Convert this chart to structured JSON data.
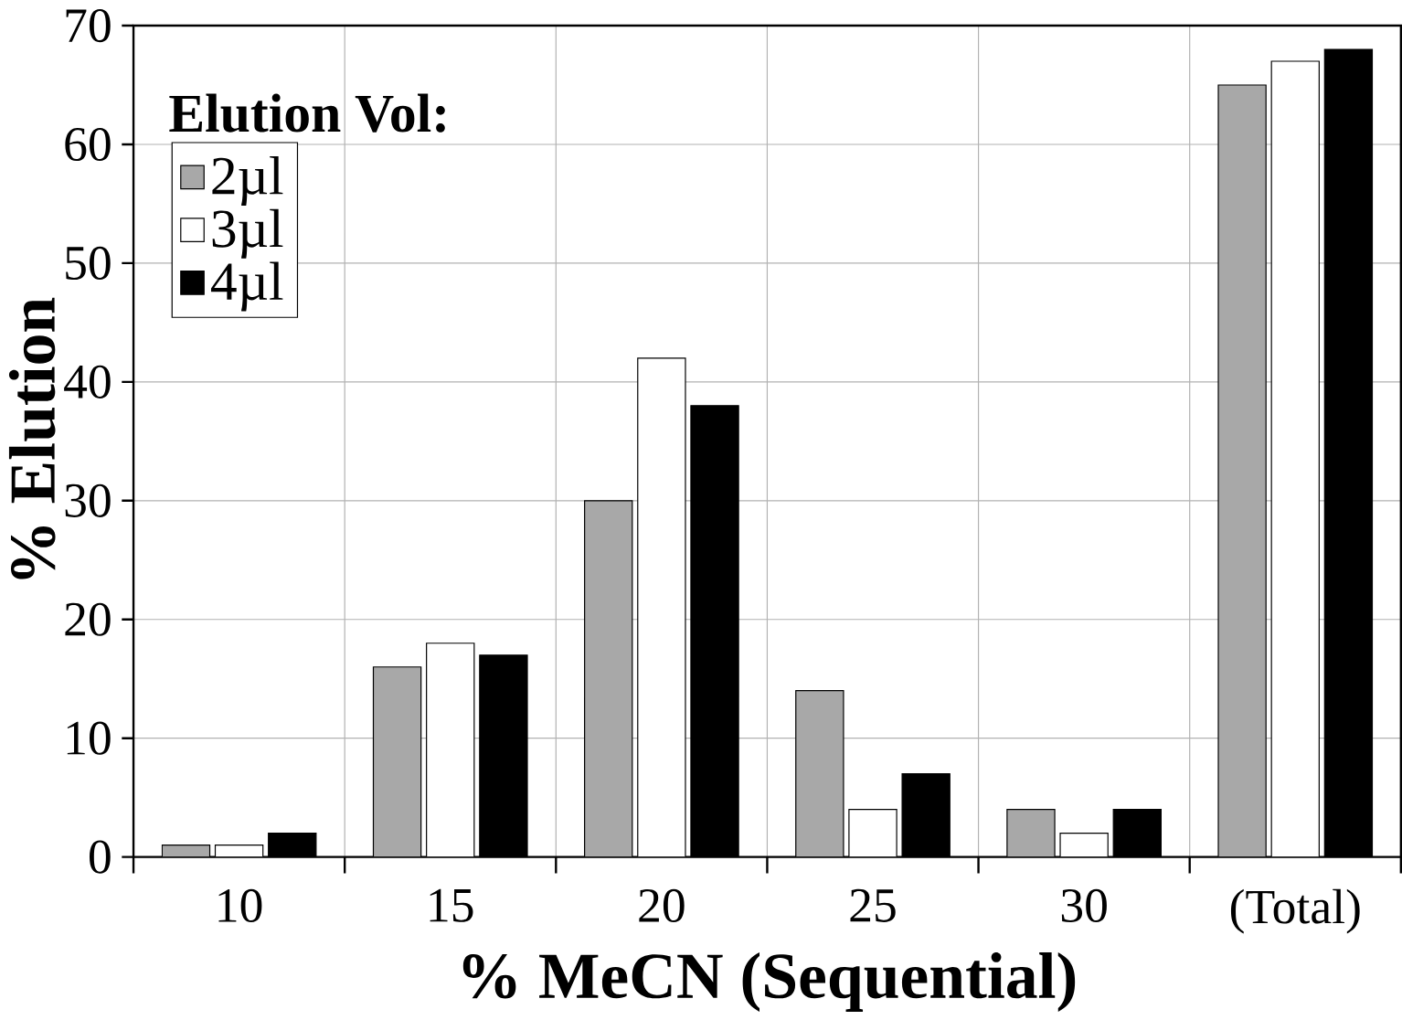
{
  "chart_data": {
    "type": "bar",
    "xlabel": "% MeCN (Sequential)",
    "ylabel": "% Elution",
    "legend_title": "Elution Vol:",
    "categories": [
      "10",
      "15",
      "20",
      "25",
      "30",
      "(Total)"
    ],
    "series": [
      {
        "name": "2µl",
        "color": "#a8a8a8",
        "values": [
          1,
          16,
          30,
          14,
          4,
          65
        ]
      },
      {
        "name": "3µl",
        "color": "#ffffff",
        "values": [
          1,
          18,
          42,
          4,
          2,
          67
        ]
      },
      {
        "name": "4µl",
        "color": "#000000",
        "values": [
          2,
          17,
          38,
          7,
          4,
          68
        ]
      }
    ],
    "ylim": [
      0,
      70
    ],
    "yticks": [
      0,
      10,
      20,
      30,
      40,
      50,
      60,
      70
    ],
    "grid": true,
    "legend": "top left"
  }
}
